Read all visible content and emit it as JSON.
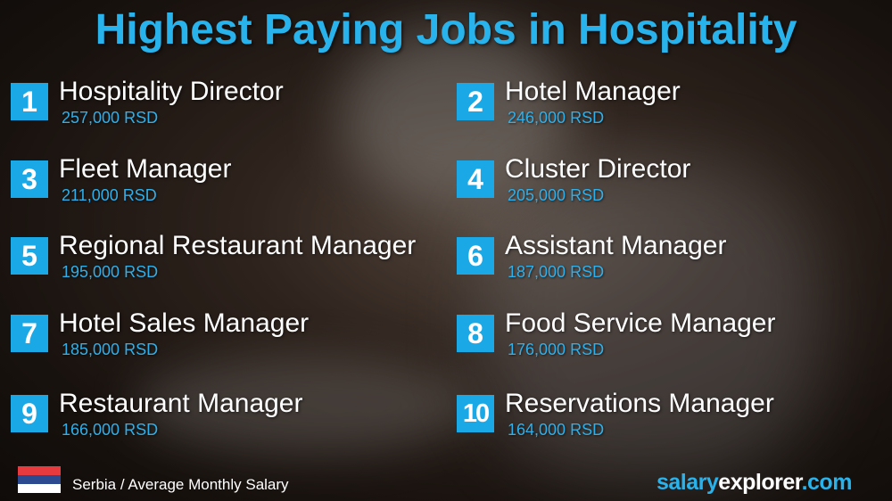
{
  "title": "Highest Paying Jobs in Hospitality",
  "colors": {
    "accent": "#1ba8e6",
    "text": "#ffffff"
  },
  "jobs": [
    {
      "rank": "1",
      "name": "Hospitality Director",
      "salary": "257,000 RSD"
    },
    {
      "rank": "2",
      "name": "Hotel Manager",
      "salary": "246,000 RSD"
    },
    {
      "rank": "3",
      "name": "Fleet Manager",
      "salary": "211,000 RSD"
    },
    {
      "rank": "4",
      "name": "Cluster Director",
      "salary": "205,000 RSD"
    },
    {
      "rank": "5",
      "name": "Regional Restaurant Manager",
      "salary": "195,000 RSD"
    },
    {
      "rank": "6",
      "name": "Assistant Manager",
      "salary": "187,000 RSD"
    },
    {
      "rank": "7",
      "name": "Hotel Sales Manager",
      "salary": "185,000 RSD"
    },
    {
      "rank": "8",
      "name": "Food Service Manager",
      "salary": "176,000 RSD"
    },
    {
      "rank": "9",
      "name": "Restaurant Manager",
      "salary": "166,000 RSD"
    },
    {
      "rank": "10",
      "name": "Reservations Manager",
      "salary": "164,000 RSD"
    }
  ],
  "footer": {
    "flag_icon": "serbia-flag-icon",
    "caption": "Serbia / Average Monthly Salary",
    "brand_a": "salary",
    "brand_b": "explorer",
    "brand_c": ".com"
  }
}
